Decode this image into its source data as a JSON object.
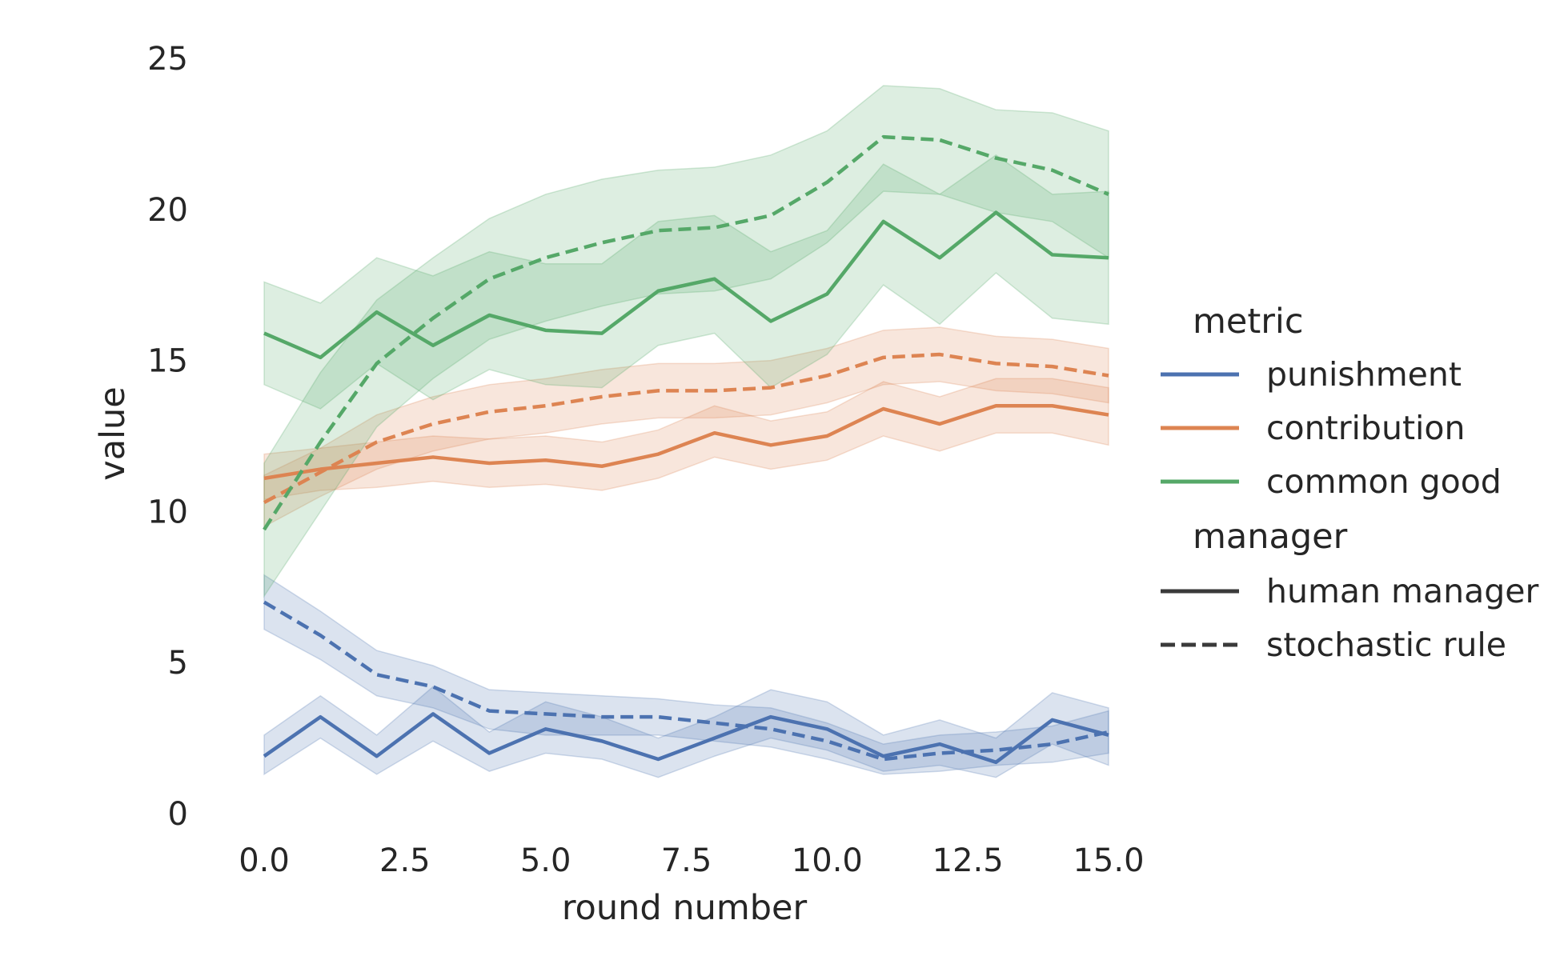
{
  "chart_data": {
    "type": "line",
    "xlabel": "round number",
    "ylabel": "value",
    "xlim": [
      0,
      15
    ],
    "ylim": [
      0,
      25
    ],
    "x_ticks": [
      "0.0",
      "2.5",
      "5.0",
      "7.5",
      "10.0",
      "12.5",
      "15.0"
    ],
    "y_ticks": [
      "0",
      "5",
      "10",
      "15",
      "20",
      "25"
    ],
    "grid": false,
    "legend_position": "right",
    "x": [
      0,
      1,
      2,
      3,
      4,
      5,
      6,
      7,
      8,
      9,
      10,
      11,
      12,
      13,
      14,
      15
    ],
    "series": [
      {
        "metric": "punishment",
        "manager": "human manager",
        "color": "#4c72b0",
        "dash": "solid",
        "values": [
          1.9,
          3.2,
          1.9,
          3.3,
          2.0,
          2.8,
          2.4,
          1.8,
          2.5,
          3.2,
          2.8,
          1.9,
          2.3,
          1.7,
          3.1,
          2.6
        ],
        "ci_low": [
          1.3,
          2.5,
          1.3,
          2.4,
          1.4,
          2.0,
          1.8,
          1.2,
          1.9,
          2.5,
          2.1,
          1.4,
          1.6,
          1.2,
          2.3,
          1.6
        ],
        "ci_high": [
          2.6,
          3.9,
          2.6,
          4.2,
          2.7,
          3.7,
          3.2,
          2.5,
          3.2,
          4.1,
          3.7,
          2.6,
          3.1,
          2.5,
          4.0,
          3.5
        ]
      },
      {
        "metric": "punishment",
        "manager": "stochastic rule",
        "color": "#4c72b0",
        "dash": "dashed",
        "values": [
          7.0,
          5.9,
          4.6,
          4.2,
          3.4,
          3.3,
          3.2,
          3.2,
          3.0,
          2.8,
          2.4,
          1.8,
          2.0,
          2.1,
          2.3,
          2.7
        ],
        "ci_low": [
          6.1,
          5.1,
          3.9,
          3.5,
          2.8,
          2.6,
          2.6,
          2.6,
          2.4,
          2.2,
          1.8,
          1.3,
          1.4,
          1.6,
          1.7,
          2.0
        ],
        "ci_high": [
          7.9,
          6.7,
          5.4,
          4.9,
          4.1,
          4.0,
          3.9,
          3.8,
          3.6,
          3.5,
          3.0,
          2.3,
          2.6,
          2.7,
          2.9,
          3.4
        ]
      },
      {
        "metric": "contribution",
        "manager": "human manager",
        "color": "#dd8452",
        "dash": "solid",
        "values": [
          11.1,
          11.4,
          11.6,
          11.8,
          11.6,
          11.7,
          11.5,
          11.9,
          12.6,
          12.2,
          12.5,
          13.4,
          12.9,
          13.5,
          13.5,
          13.2
        ],
        "ci_low": [
          10.4,
          10.7,
          10.8,
          11.0,
          10.8,
          10.9,
          10.7,
          11.1,
          11.8,
          11.4,
          11.7,
          12.5,
          12.0,
          12.6,
          12.6,
          12.2
        ],
        "ci_high": [
          11.9,
          12.1,
          12.3,
          12.5,
          12.4,
          12.5,
          12.3,
          12.7,
          13.5,
          13.0,
          13.3,
          14.3,
          13.8,
          14.4,
          14.4,
          14.1
        ]
      },
      {
        "metric": "contribution",
        "manager": "stochastic rule",
        "color": "#dd8452",
        "dash": "dashed",
        "values": [
          10.3,
          11.3,
          12.3,
          12.9,
          13.3,
          13.5,
          13.8,
          14.0,
          14.0,
          14.1,
          14.5,
          15.1,
          15.2,
          14.9,
          14.8,
          14.5
        ],
        "ci_low": [
          9.5,
          10.5,
          11.4,
          12.0,
          12.4,
          12.6,
          12.9,
          13.1,
          13.1,
          13.2,
          13.6,
          14.2,
          14.3,
          14.0,
          13.9,
          13.6
        ],
        "ci_high": [
          11.2,
          12.1,
          13.2,
          13.8,
          14.2,
          14.4,
          14.7,
          14.9,
          14.9,
          15.0,
          15.4,
          16.0,
          16.1,
          15.8,
          15.7,
          15.4
        ]
      },
      {
        "metric": "common good",
        "manager": "human manager",
        "color": "#55a868",
        "dash": "solid",
        "values": [
          15.9,
          15.1,
          16.6,
          15.5,
          16.5,
          16.0,
          15.9,
          17.3,
          17.7,
          16.3,
          17.2,
          19.6,
          18.4,
          19.9,
          18.5,
          18.4
        ],
        "ci_low": [
          14.2,
          13.4,
          14.9,
          13.7,
          14.7,
          14.2,
          14.1,
          15.5,
          15.9,
          14.1,
          15.2,
          17.5,
          16.2,
          17.9,
          16.4,
          16.2
        ],
        "ci_high": [
          17.6,
          16.9,
          18.4,
          17.8,
          18.6,
          18.2,
          18.2,
          19.6,
          19.8,
          18.6,
          19.3,
          21.5,
          20.5,
          21.8,
          20.5,
          20.6
        ]
      },
      {
        "metric": "common good",
        "manager": "stochastic rule",
        "color": "#55a868",
        "dash": "dashed",
        "values": [
          9.4,
          12.3,
          14.9,
          16.4,
          17.7,
          18.4,
          18.9,
          19.3,
          19.4,
          19.8,
          20.9,
          22.4,
          22.3,
          21.7,
          21.3,
          20.5
        ],
        "ci_low": [
          7.2,
          10.0,
          12.8,
          14.4,
          15.7,
          16.3,
          16.8,
          17.2,
          17.3,
          17.7,
          18.9,
          20.6,
          20.5,
          19.9,
          19.6,
          18.4
        ],
        "ci_high": [
          11.6,
          14.6,
          17.0,
          18.4,
          19.7,
          20.5,
          21.0,
          21.3,
          21.4,
          21.8,
          22.6,
          24.1,
          24.0,
          23.3,
          23.2,
          22.6
        ]
      }
    ]
  },
  "legend": {
    "metric_title": "metric",
    "metric_items": [
      {
        "label": "punishment",
        "color": "#4c72b0"
      },
      {
        "label": "contribution",
        "color": "#dd8452"
      },
      {
        "label": "common good",
        "color": "#55a868"
      }
    ],
    "manager_title": "manager",
    "manager_items": [
      {
        "label": "human manager",
        "dash": "solid",
        "color": "#3a3a3a"
      },
      {
        "label": "stochastic rule",
        "dash": "dashed",
        "color": "#3a3a3a"
      }
    ]
  }
}
